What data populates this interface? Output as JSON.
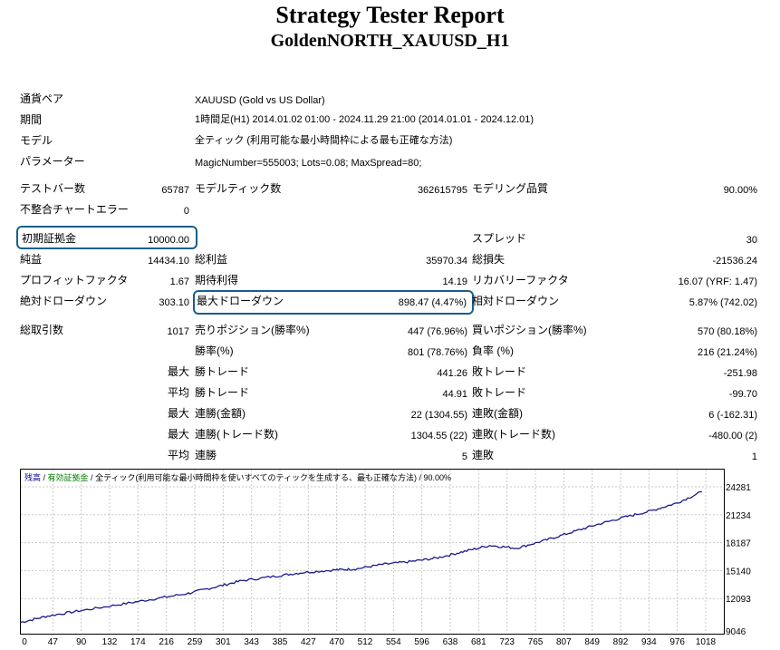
{
  "report": {
    "title": "Strategy Tester Report",
    "subtitle": "GoldenNORTH_XAUUSD_H1"
  },
  "info": [
    {
      "label": "通貨ペア",
      "value": "XAUUSD (Gold vs US Dollar)"
    },
    {
      "label": "期間",
      "value": "1時間足(H1) 2014.01.02 01:00 - 2024.11.29 21:00 (2014.01.01 - 2024.12.01)"
    },
    {
      "label": "モデル",
      "value": "全ティック (利用可能な最小時間枠による最も正確な方法)"
    },
    {
      "label": "パラメーター",
      "value": "MagicNumber=555003; Lots=0.08; MaxSpread=80;"
    }
  ],
  "stats": {
    "test_bars_label": "テストバー数",
    "test_bars": "65787",
    "model_ticks_label": "モデルティック数",
    "model_ticks": "362615795",
    "model_quality_label": "モデリング品質",
    "model_quality": "90.00%",
    "mismatch_label": "不整合チャートエラー",
    "mismatch": "0",
    "initial_deposit_label": "初期証拠金",
    "initial_deposit": "10000.00",
    "spread_label": "スプレッド",
    "spread": "30",
    "net_profit_label": "純益",
    "net_profit": "14434.10",
    "gross_profit_label": "総利益",
    "gross_profit": "35970.34",
    "gross_loss_label": "総損失",
    "gross_loss": "-21536.24",
    "profit_factor_label": "プロフィットファクタ",
    "profit_factor": "1.67",
    "expected_payoff_label": "期待利得",
    "expected_payoff": "14.19",
    "recovery_factor_label": "リカバリーファクタ",
    "recovery_factor": "16.07 (YRF: 1.47)",
    "abs_drawdown_label": "絶対ドローダウン",
    "abs_drawdown": "303.10",
    "max_drawdown_label": "最大ドローダウン",
    "max_drawdown": "898.47 (4.47%)",
    "rel_drawdown_label": "相対ドローダウン",
    "rel_drawdown": "5.87% (742.02)",
    "total_trades_label": "総取引数",
    "total_trades": "1017",
    "short_label": "売りポジション(勝率%)",
    "short": "447 (76.96%)",
    "long_label": "買いポジション(勝率%)",
    "long": "570 (80.18%)",
    "win_rate_label": "勝率(%)",
    "win_rate": "801 (78.76%)",
    "loss_rate_label": "負率 (%)",
    "loss_rate": "216 (21.24%)",
    "max_label": "最大",
    "avg_label": "平均",
    "max_win_label": "勝トレード",
    "max_win": "441.26",
    "max_loss_label": "敗トレード",
    "max_loss": "-251.98",
    "avg_win_label": "勝トレード",
    "avg_win": "44.91",
    "avg_loss_label": "敗トレード",
    "avg_loss": "-99.70",
    "max_consec_wins_money_label": "連勝(金額)",
    "max_consec_wins_money": "22 (1304.55)",
    "max_consec_losses_money_label": "連敗(金額)",
    "max_consec_losses_money": "6 (-162.31)",
    "max_consec_profit_label": "連勝(トレード数)",
    "max_consec_profit": "1304.55 (22)",
    "max_consec_loss_label": "連敗(トレード数)",
    "max_consec_loss": "-480.00 (2)",
    "avg_consec_wins_label": "連勝",
    "avg_consec_wins": "5",
    "avg_consec_losses_label": "連敗",
    "avg_consec_losses": "1"
  },
  "chart_legend": {
    "balance": "残高",
    "sep1": " / ",
    "equity": "有効証拠金",
    "sep2": " / ",
    "model": "全ティック(利用可能な最小時間枠を使いすべてのティックを生成する、最も正確な方法)",
    "sep3": " / ",
    "quality": "90.00%"
  },
  "colors": {
    "line": "#1a1a8c",
    "highlight_box": "#1a5f8e",
    "grid": "#c8c8c8"
  },
  "chart_data": {
    "type": "line",
    "x_ticks": [
      "0",
      "47",
      "90",
      "132",
      "174",
      "216",
      "259",
      "301",
      "343",
      "385",
      "427",
      "470",
      "512",
      "554",
      "596",
      "638",
      "681",
      "723",
      "765",
      "807",
      "849",
      "892",
      "934",
      "976",
      "1018"
    ],
    "y_ticks": [
      "9046",
      "12093",
      "15140",
      "18187",
      "21234",
      "24281"
    ],
    "xlim": [
      0,
      1047
    ],
    "ylim": [
      9046,
      25281
    ],
    "grid": true,
    "series": [
      {
        "x": [
          0,
          40,
          90,
          150,
          200,
          250,
          290,
          330,
          380,
          420,
          470,
          500,
          540,
          580,
          620,
          660,
          700,
          740,
          780,
          820,
          860,
          900,
          940,
          980,
          1017
        ],
        "y": [
          10000,
          10700,
          11300,
          12000,
          12600,
          13200,
          13900,
          14600,
          15100,
          15500,
          15800,
          15900,
          16400,
          16700,
          17100,
          17800,
          18500,
          18200,
          19000,
          19900,
          20800,
          21600,
          22300,
          23200,
          24434
        ]
      }
    ]
  }
}
